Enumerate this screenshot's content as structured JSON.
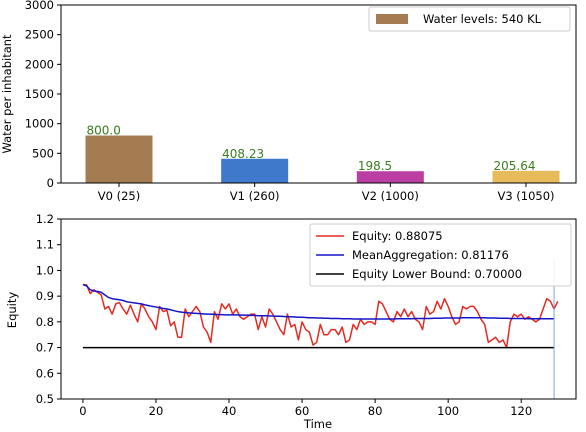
{
  "chart_data": [
    {
      "type": "bar",
      "ylabel": "Water per inhabitant",
      "ylim": [
        0,
        3000
      ],
      "yticks": [
        0,
        500,
        1000,
        1500,
        2000,
        2500,
        3000
      ],
      "categories": [
        "V0 (25)",
        "V1 (260)",
        "V2 (1000)",
        "V3 (1050)"
      ],
      "values": [
        800.0,
        408.23,
        198.5,
        205.64
      ],
      "value_labels": [
        "800.0",
        "408.23",
        "198.5",
        "205.64"
      ],
      "colors": [
        "#a57c52",
        "#3f79cc",
        "#bb3ea3",
        "#e8bb5a"
      ],
      "value_label_color": "#3a7d1e",
      "legend": {
        "label": "Water levels: 540 KL",
        "position": "top-right",
        "color": "#a57c52"
      },
      "grid": false
    },
    {
      "type": "line",
      "xlabel": "Time",
      "ylabel": "Equity",
      "xlim": [
        -6,
        135
      ],
      "ylim": [
        0.5,
        1.2
      ],
      "xticks": [
        0,
        20,
        40,
        60,
        80,
        100,
        120
      ],
      "yticks": [
        0.5,
        0.6,
        0.7,
        0.8,
        0.9,
        1.0,
        1.1,
        1.2
      ],
      "grid": false,
      "legend_position": "top-right",
      "vline": {
        "x": 129,
        "color": "#7fa0f0"
      },
      "series": [
        {
          "name": "Equity: 0.88075",
          "color": "#e52a22",
          "x_start": 0,
          "values": [
            0.945,
            0.944,
            0.91,
            0.925,
            0.915,
            0.905,
            0.85,
            0.86,
            0.83,
            0.87,
            0.875,
            0.85,
            0.83,
            0.865,
            0.83,
            0.8,
            0.87,
            0.85,
            0.82,
            0.8,
            0.77,
            0.86,
            0.84,
            0.845,
            0.785,
            0.8,
            0.74,
            0.74,
            0.85,
            0.82,
            0.84,
            0.86,
            0.84,
            0.78,
            0.76,
            0.72,
            0.84,
            0.81,
            0.87,
            0.85,
            0.87,
            0.83,
            0.85,
            0.82,
            0.81,
            0.82,
            0.83,
            0.83,
            0.77,
            0.82,
            0.78,
            0.85,
            0.83,
            0.8,
            0.77,
            0.75,
            0.83,
            0.78,
            0.79,
            0.73,
            0.8,
            0.77,
            0.76,
            0.71,
            0.72,
            0.79,
            0.75,
            0.75,
            0.77,
            0.77,
            0.75,
            0.78,
            0.72,
            0.73,
            0.79,
            0.77,
            0.81,
            0.79,
            0.8,
            0.8,
            0.79,
            0.88,
            0.87,
            0.84,
            0.81,
            0.8,
            0.84,
            0.82,
            0.85,
            0.82,
            0.84,
            0.81,
            0.8,
            0.77,
            0.86,
            0.83,
            0.84,
            0.88,
            0.85,
            0.89,
            0.86,
            0.82,
            0.79,
            0.8,
            0.86,
            0.85,
            0.86,
            0.86,
            0.84,
            0.81,
            0.79,
            0.72,
            0.73,
            0.74,
            0.72,
            0.73,
            0.7,
            0.8,
            0.83,
            0.82,
            0.83,
            0.81,
            0.82,
            0.81,
            0.8,
            0.81,
            0.85,
            0.89,
            0.88,
            0.85,
            0.88
          ]
        },
        {
          "name": "MeanAggregation: 0.81176",
          "color": "#1515c8",
          "x_start": 0,
          "values": [
            0.945,
            0.94,
            0.925,
            0.92,
            0.918,
            0.915,
            0.905,
            0.895,
            0.89,
            0.888,
            0.886,
            0.883,
            0.878,
            0.876,
            0.874,
            0.872,
            0.87,
            0.866,
            0.863,
            0.86,
            0.858,
            0.855,
            0.852,
            0.85,
            0.847,
            0.843,
            0.84,
            0.838,
            0.836,
            0.835,
            0.834,
            0.833,
            0.832,
            0.831,
            0.83,
            0.83,
            0.829,
            0.828,
            0.828,
            0.827,
            0.827,
            0.827,
            0.827,
            0.826,
            0.826,
            0.826,
            0.825,
            0.825,
            0.824,
            0.824,
            0.824,
            0.823,
            0.823,
            0.822,
            0.822,
            0.821,
            0.82,
            0.82,
            0.819,
            0.818,
            0.818,
            0.817,
            0.816,
            0.816,
            0.815,
            0.815,
            0.814,
            0.814,
            0.813,
            0.813,
            0.813,
            0.812,
            0.812,
            0.812,
            0.811,
            0.811,
            0.811,
            0.811,
            0.811,
            0.811,
            0.811,
            0.811,
            0.811,
            0.811,
            0.811,
            0.811,
            0.812,
            0.812,
            0.812,
            0.812,
            0.812,
            0.813,
            0.813,
            0.813,
            0.813,
            0.813,
            0.814,
            0.814,
            0.814,
            0.815,
            0.815,
            0.815,
            0.815,
            0.815,
            0.816,
            0.816,
            0.816,
            0.816,
            0.816,
            0.816,
            0.816,
            0.815,
            0.815,
            0.815,
            0.814,
            0.814,
            0.814,
            0.813,
            0.813,
            0.813,
            0.813,
            0.813,
            0.812,
            0.812,
            0.812,
            0.812,
            0.812,
            0.812,
            0.812,
            0.812
          ]
        },
        {
          "name": "Equity Lower Bound: 0.70000",
          "color": "#000000",
          "x": [
            0,
            129
          ],
          "values": [
            0.7,
            0.7
          ]
        }
      ]
    }
  ]
}
